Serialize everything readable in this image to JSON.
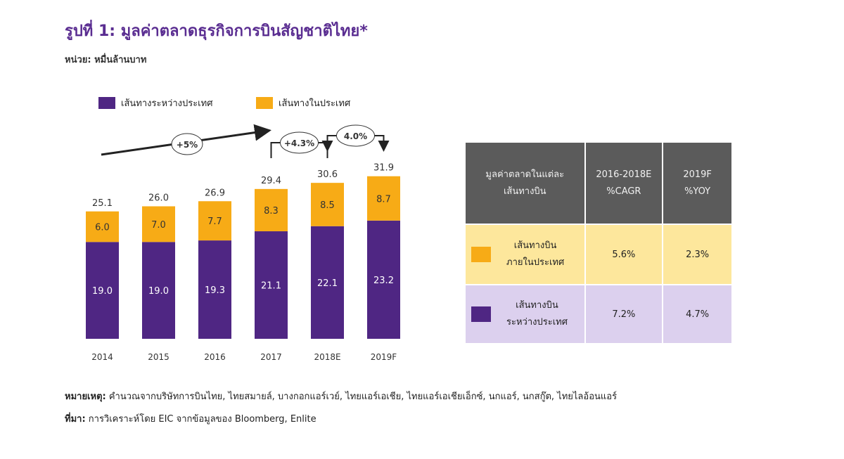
{
  "page": {
    "title": "รูปที่ 1: มูลค่าตลาดธุรกิจการบินสัญชาติไทย*",
    "unit": "หน่วย: หมื่นล้านบาท",
    "note_label": "หมายเหตุ:",
    "note_text": "คำนวณจากบริษัทการบินไทย, ไทยสมายล์, บางกอกแอร์เวย์, ไทยแอร์เอเชีย, ไทยแอร์เอเชียเอ็กซ์, นกแอร์, นกสกู๊ต, ไทยไลอ้อนแอร์",
    "source_label": "ที่มา:",
    "source_text": "การวิเคราะห์โดย EIC จากข้อมูลของ Bloomberg, Enlite"
  },
  "colors": {
    "international": "#4f2683",
    "domestic": "#f7ab16",
    "table_header": "#5b5b5b",
    "domestic_row": "#fde79c",
    "international_row": "#dcd0ee"
  },
  "chart_data": {
    "type": "bar",
    "stacked": true,
    "categories": [
      "2014",
      "2015",
      "2016",
      "2017",
      "2018E",
      "2019F"
    ],
    "series": [
      {
        "name": "เส้นทางระหว่างประเทศ",
        "values": [
          19.0,
          19.0,
          19.3,
          21.1,
          22.1,
          23.2
        ]
      },
      {
        "name": "เส้นทางในประเทศ",
        "values": [
          6.0,
          7.0,
          7.7,
          8.3,
          8.5,
          8.7
        ]
      }
    ],
    "totals": [
      25.1,
      26.0,
      26.9,
      29.4,
      30.6,
      31.9
    ],
    "legend_position": "top-left",
    "grid": false,
    "annotations": [
      {
        "label": "+5%",
        "from": "2014",
        "to": "2017",
        "style": "trend-arrow"
      },
      {
        "label": "+4.3%",
        "from": "2017",
        "to": "2018E",
        "style": "bracket-arrow"
      },
      {
        "label": "4.0%",
        "from": "2018E",
        "to": "2019F",
        "style": "bracket-arrow"
      }
    ]
  },
  "table": {
    "headers": [
      "มูลค่าตลาดในแต่ละ\nเส้นทางบิน",
      "2016-2018E\n%CAGR",
      "2019F\n%YOY"
    ],
    "rows": [
      {
        "label": "เส้นทางบิน\nภายในประเทศ",
        "cagr": "5.6%",
        "yoy": "2.3%"
      },
      {
        "label": "เส้นทางบิน\nระหว่างประเทศ",
        "cagr": "7.2%",
        "yoy": "4.7%"
      }
    ]
  }
}
